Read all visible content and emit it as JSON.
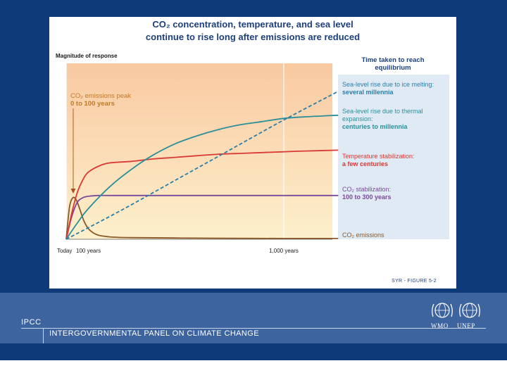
{
  "figure": {
    "title_line1": "CO₂ concentration, temperature, and sea level",
    "title_line2": "continue to rise long after emissions are reduced",
    "ylabel": "Magnitude of response",
    "legend_heading_line1": "Time taken to reach",
    "legend_heading_line2": "equilibrium",
    "annotation_line1": "CO₂ emissions peak",
    "annotation_line2": "0 to 100 years",
    "x_tick_today": "Today",
    "x_tick_100": "100 years",
    "x_tick_1000": "1,000  years",
    "figure_ref": "SYR - FIGURE 5-2"
  },
  "footer": {
    "ipcc": "IPCC",
    "org_name": "INTERGOVERNMENTAL PANEL ON CLIMATE CHANGE",
    "wmo": "WMO",
    "unep": "UNEP"
  },
  "colors": {
    "slide_background": "#0f3a7a",
    "footer_band": "#3e64a0",
    "ice_sea_level": "#2a7fa8",
    "thermal_sea_level": "#2b8f9a",
    "temperature": "#d83a34",
    "co2_concentration": "#7a4a9a",
    "co2_emissions": "#8a5a2a",
    "annotation_text": "#c07a2a"
  },
  "chart_data": {
    "type": "line",
    "title": "CO₂ concentration, temperature, and sea level continue to rise long after emissions are reduced",
    "xlabel": "",
    "ylabel": "Magnitude of response",
    "x_ticks": [
      {
        "x": 0,
        "label": "Today"
      },
      {
        "x": 100,
        "label": "100 years"
      },
      {
        "x": 1000,
        "label": "1,000  years"
      }
    ],
    "xlim": [
      0,
      1250
    ],
    "ylim": [
      0,
      1
    ],
    "grid": false,
    "legend_position": "right",
    "annotation": {
      "x": 50,
      "y": 0.4,
      "text": "CO₂ emissions peak 0 to 100 years"
    },
    "series": [
      {
        "key": "ice",
        "name": "Sea-level rise due to ice melting:",
        "detail": "several millennia",
        "style": "dashed",
        "x": [
          0,
          250,
          500,
          750,
          1000,
          1250
        ],
        "y": [
          0,
          0.18,
          0.37,
          0.56,
          0.75,
          0.93
        ]
      },
      {
        "key": "thermal",
        "name": "Sea-level rise due to thermal expansion:",
        "detail": "centuries to millennia",
        "style": "solid",
        "x": [
          0,
          50,
          100,
          200,
          300,
          400,
          500,
          600,
          700,
          800,
          900,
          1000,
          1100,
          1250
        ],
        "y": [
          0,
          0.1,
          0.19,
          0.33,
          0.44,
          0.53,
          0.6,
          0.65,
          0.69,
          0.72,
          0.74,
          0.76,
          0.77,
          0.78
        ]
      },
      {
        "key": "temperature",
        "name": "Temperature stabilization:",
        "detail": "a few centuries",
        "style": "solid",
        "x": [
          0,
          25,
          50,
          75,
          100,
          150,
          200,
          300,
          400,
          500,
          600,
          700,
          800,
          900,
          1000,
          1100,
          1250
        ],
        "y": [
          0,
          0.16,
          0.29,
          0.37,
          0.42,
          0.46,
          0.48,
          0.49,
          0.505,
          0.515,
          0.525,
          0.535,
          0.54,
          0.545,
          0.55,
          0.555,
          0.56
        ]
      },
      {
        "key": "co2_conc",
        "name": "CO₂ stabilization:",
        "detail": "100 to 300 years",
        "style": "solid",
        "x": [
          0,
          25,
          50,
          75,
          100,
          150,
          200,
          300,
          500,
          700,
          1000,
          1250
        ],
        "y": [
          0,
          0.14,
          0.23,
          0.26,
          0.27,
          0.275,
          0.275,
          0.275,
          0.275,
          0.275,
          0.275,
          0.275
        ]
      },
      {
        "key": "emissions",
        "name": "CO₂ emissions",
        "detail": "",
        "style": "solid",
        "x": [
          0,
          15,
          30,
          45,
          60,
          80,
          100,
          125,
          150,
          200,
          300,
          500,
          750,
          1000,
          1250
        ],
        "y": [
          0,
          0.2,
          0.26,
          0.25,
          0.2,
          0.12,
          0.07,
          0.04,
          0.025,
          0.015,
          0.01,
          0.008,
          0.006,
          0.005,
          0.005
        ]
      }
    ]
  }
}
